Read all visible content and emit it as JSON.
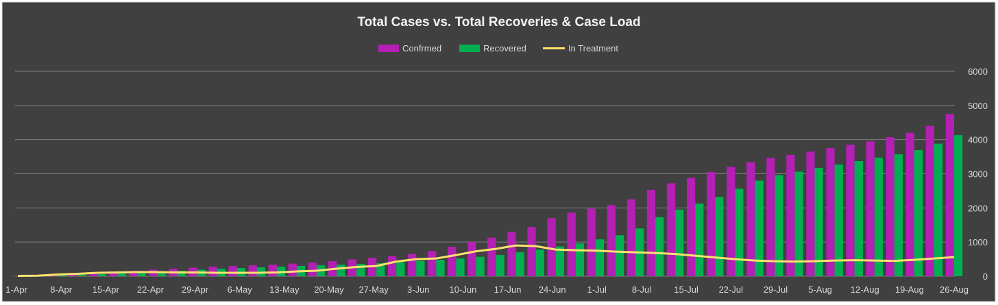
{
  "chart_data": {
    "type": "bar",
    "title": "Total Cases vs. Total Recoveries & Case Load",
    "legend_position": "top",
    "grid": true,
    "y_axis_position": "right",
    "ylim": [
      0,
      6000
    ],
    "yticks": [
      "0",
      "1000",
      "2000",
      "3000",
      "4000",
      "5000",
      "6000"
    ],
    "x_start": "1-Apr",
    "x_end": "26-Aug",
    "x_tick_labels": [
      "1-Apr",
      "8-Apr",
      "15-Apr",
      "22-Apr",
      "29-Apr",
      "6-May",
      "13-May",
      "20-May",
      "27-May",
      "3-Jun",
      "10-Jun",
      "17-Jun",
      "24-Jun",
      "1-Jul",
      "8-Jul",
      "15-Jul",
      "22-Jul",
      "29-Jul",
      "5-Aug",
      "12-Aug",
      "19-Aug",
      "26-Aug"
    ],
    "series": [
      {
        "name": "Confrmed",
        "kind": "bar",
        "color": "#b41fb4",
        "values": [
          10,
          30,
          50,
          70,
          100,
          130,
          160,
          190,
          220,
          250,
          280,
          300,
          320,
          340,
          370,
          400,
          440,
          490,
          540,
          590,
          650,
          740,
          860,
          1000,
          1130,
          1300,
          1440,
          1700,
          1860,
          1980,
          2080,
          2250,
          2530,
          2720,
          2880,
          3050,
          3200,
          3340,
          3460,
          3550,
          3650,
          3750,
          3850,
          3950,
          4070,
          4200,
          4400,
          4750
        ]
      },
      {
        "name": "Recovered",
        "kind": "bar",
        "color": "#00b050",
        "values": [
          0,
          15,
          30,
          45,
          60,
          80,
          100,
          130,
          160,
          190,
          220,
          240,
          260,
          280,
          300,
          320,
          340,
          360,
          380,
          410,
          450,
          480,
          520,
          570,
          620,
          700,
          780,
          870,
          960,
          1080,
          1200,
          1400,
          1730,
          1950,
          2130,
          2320,
          2560,
          2800,
          2960,
          3060,
          3170,
          3270,
          3370,
          3470,
          3570,
          3690,
          3880,
          4130
        ]
      },
      {
        "name": "In Treatment",
        "kind": "line",
        "color": "#ffe26e",
        "values": [
          10,
          15,
          50,
          70,
          100,
          110,
          120,
          120,
          110,
          110,
          100,
          100,
          100,
          110,
          140,
          160,
          220,
          270,
          300,
          430,
          500,
          520,
          620,
          730,
          800,
          900,
          880,
          780,
          760,
          750,
          720,
          700,
          680,
          650,
          600,
          550,
          500,
          460,
          440,
          430,
          440,
          460,
          470,
          460,
          450,
          480,
          520,
          560
        ]
      }
    ]
  }
}
